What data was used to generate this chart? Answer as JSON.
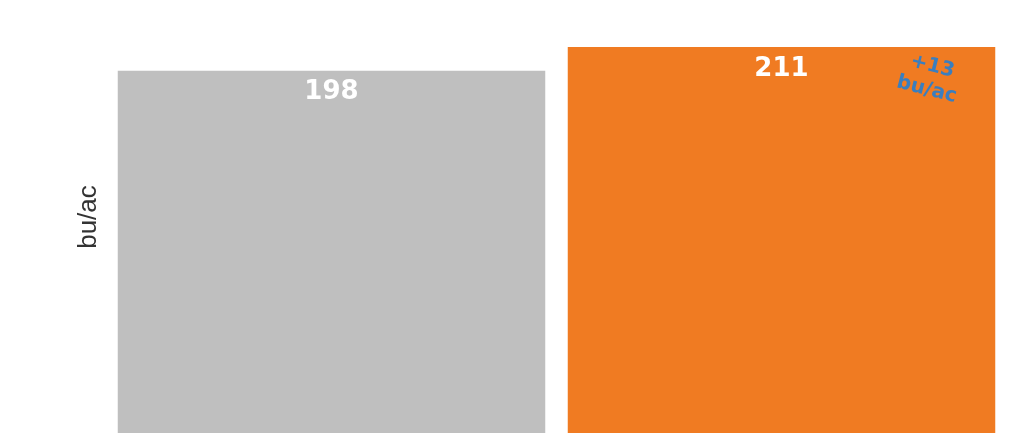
{
  "chart_data": {
    "type": "bar",
    "ylabel": "bu/ac",
    "categories": [
      null,
      null
    ],
    "values": [
      198,
      211
    ],
    "colors": [
      "#bfbfbf",
      "#f07b22"
    ],
    "data_labels": true,
    "grid": false,
    "annotations": [
      "+13\nbu/ac"
    ]
  }
}
